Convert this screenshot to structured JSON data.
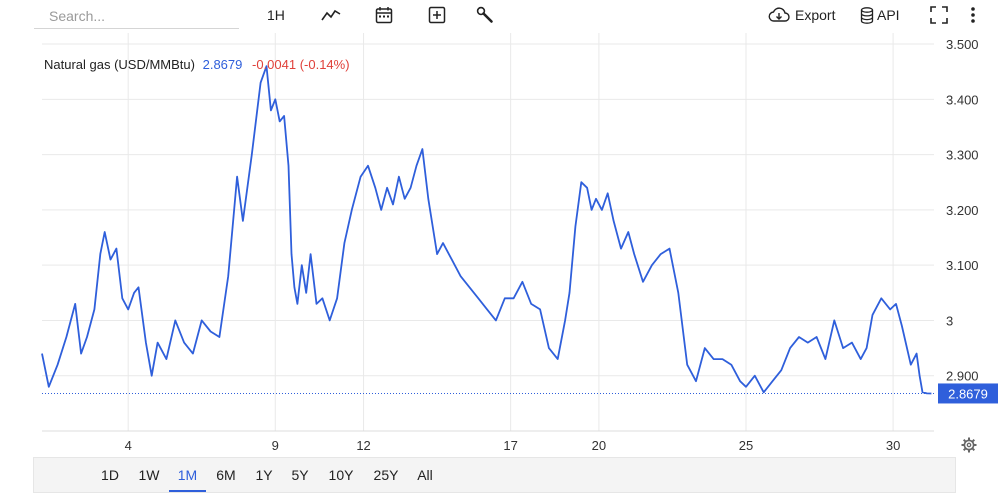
{
  "toolbar": {
    "search_placeholder": "Search...",
    "interval_label": "1H",
    "chart_type_icon": "line-chart-icon",
    "calendar_icon": "calendar-icon",
    "add_icon": "plus-box-icon",
    "tools_icon": "wrench-icon",
    "export_label": "Export",
    "api_label": "API",
    "fullscreen_icon": "fullscreen-icon",
    "more_icon": "vertical-dots-icon"
  },
  "header": {
    "name": "Natural gas (USD/MMBtu)",
    "price": "2.8679",
    "change": "-0.0041 (-0.14%)"
  },
  "range_buttons": [
    "1D",
    "1W",
    "1M",
    "6M",
    "1Y",
    "5Y",
    "10Y",
    "25Y",
    "All"
  ],
  "active_range": "1M",
  "colors": {
    "line": "#2f5fdb",
    "change_negative": "#e0413a",
    "grid": "#e9e9e9"
  },
  "chart_data": {
    "type": "line",
    "title": "Natural gas (USD/MMBtu)",
    "xlabel": "",
    "ylabel": "",
    "x_ticks": [
      {
        "label": "4",
        "day": 4
      },
      {
        "label": "9",
        "day": 9
      },
      {
        "label": "12",
        "day": 12
      },
      {
        "label": "17",
        "day": 17
      },
      {
        "label": "20",
        "day": 20
      },
      {
        "label": "25",
        "day": 25
      },
      {
        "label": "30",
        "day": 30
      }
    ],
    "y_ticks": [
      {
        "label": "2.900",
        "value": 2.9
      },
      {
        "label": "3",
        "value": 3.0
      },
      {
        "label": "3.100",
        "value": 3.1
      },
      {
        "label": "3.200",
        "value": 3.2
      },
      {
        "label": "3.300",
        "value": 3.3
      },
      {
        "label": "3.400",
        "value": 3.4
      },
      {
        "label": "3.500",
        "value": 3.5
      }
    ],
    "xlim": [
      1.07,
      31.39
    ],
    "ylim": [
      2.8,
      3.52
    ],
    "grid": true,
    "last_price_label": "2.8679",
    "last_price": 2.8679,
    "series": [
      {
        "x": [
          1.07,
          1.3,
          1.6,
          1.9,
          2.2,
          2.4,
          2.6,
          2.85,
          3.05,
          3.2,
          3.4,
          3.6,
          3.8,
          4.0,
          4.2,
          4.35,
          4.6,
          4.8,
          5.0,
          5.3,
          5.6,
          5.9,
          6.2,
          6.5,
          6.8,
          7.1,
          7.4,
          7.7,
          7.9,
          8.2,
          8.5,
          8.7,
          8.85,
          9.0,
          9.15,
          9.3,
          9.45,
          9.55,
          9.65,
          9.75,
          9.9,
          10.05,
          10.2,
          10.4,
          10.6,
          10.85,
          11.1,
          11.35,
          11.6,
          11.9,
          12.15,
          12.4,
          12.6,
          12.8,
          13.0,
          13.2,
          13.4,
          13.6,
          13.8,
          14.0,
          14.2,
          14.35,
          14.5,
          14.7,
          15.0,
          15.3,
          15.6,
          15.9,
          16.2,
          16.5,
          16.8,
          17.1,
          17.4,
          17.7,
          18.0,
          18.3,
          18.6,
          18.85,
          19.0,
          19.2,
          19.4,
          19.6,
          19.75,
          19.9,
          20.1,
          20.3,
          20.5,
          20.75,
          21.0,
          21.2,
          21.5,
          21.8,
          22.1,
          22.4,
          22.7,
          23.0,
          23.3,
          23.6,
          23.9,
          24.2,
          24.5,
          24.8,
          25.0,
          25.3,
          25.6,
          25.9,
          26.2,
          26.5,
          26.8,
          27.1,
          27.4,
          27.7,
          28.0,
          28.3,
          28.6,
          28.9,
          29.1,
          29.3,
          29.6,
          29.9,
          30.1,
          30.3,
          30.6,
          30.8,
          30.9,
          31.0,
          31.15,
          31.3
        ],
        "values": [
          2.94,
          2.88,
          2.92,
          2.97,
          3.03,
          2.94,
          2.97,
          3.02,
          3.12,
          3.16,
          3.11,
          3.13,
          3.04,
          3.02,
          3.05,
          3.06,
          2.96,
          2.9,
          2.96,
          2.93,
          3.0,
          2.96,
          2.94,
          3.0,
          2.98,
          2.97,
          3.08,
          3.26,
          3.18,
          3.3,
          3.43,
          3.46,
          3.38,
          3.4,
          3.36,
          3.37,
          3.28,
          3.12,
          3.06,
          3.03,
          3.1,
          3.05,
          3.12,
          3.03,
          3.04,
          3.0,
          3.04,
          3.14,
          3.2,
          3.26,
          3.28,
          3.24,
          3.2,
          3.24,
          3.21,
          3.26,
          3.22,
          3.24,
          3.28,
          3.31,
          3.22,
          3.17,
          3.12,
          3.14,
          3.11,
          3.08,
          3.06,
          3.04,
          3.02,
          3.0,
          3.04,
          3.04,
          3.07,
          3.03,
          3.02,
          2.95,
          2.93,
          3.0,
          3.05,
          3.17,
          3.25,
          3.24,
          3.2,
          3.22,
          3.2,
          3.23,
          3.18,
          3.13,
          3.16,
          3.12,
          3.07,
          3.1,
          3.12,
          3.13,
          3.05,
          2.92,
          2.89,
          2.95,
          2.93,
          2.93,
          2.92,
          2.89,
          2.88,
          2.9,
          2.87,
          2.89,
          2.91,
          2.95,
          2.97,
          2.96,
          2.97,
          2.93,
          3.0,
          2.95,
          2.96,
          2.93,
          2.95,
          3.01,
          3.04,
          3.02,
          3.03,
          2.99,
          2.92,
          2.94,
          2.9,
          2.87,
          2.868,
          2.8679
        ]
      }
    ]
  }
}
